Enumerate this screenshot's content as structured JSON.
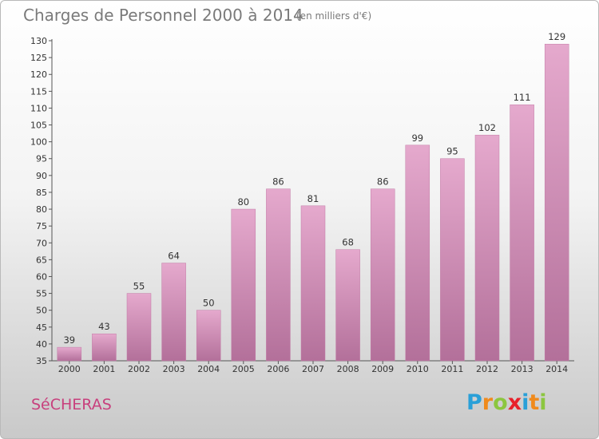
{
  "header": {
    "title": "Charges de Personnel 2000 à 2014",
    "subtitle": "(en milliers d'€)"
  },
  "footer": {
    "commune": "SéCHERAS",
    "logo_letters": [
      "P",
      "r",
      "o",
      "x",
      "i",
      "t",
      "i"
    ],
    "logo_colors": [
      "#2aa0d8",
      "#f08a1c",
      "#8cc63f",
      "#e8202a",
      "#2aa0d8",
      "#f08a1c",
      "#8cc63f"
    ]
  },
  "colors": {
    "bar_top": "#e5a9cd",
    "bar_bottom": "#b3709a",
    "bar_edge": "#c27aa6"
  },
  "chart_data": {
    "type": "bar",
    "title": "Charges de Personnel 2000 à 2014",
    "subtitle": "(en milliers d'€)",
    "categories": [
      "2000",
      "2001",
      "2002",
      "2003",
      "2004",
      "2005",
      "2006",
      "2007",
      "2008",
      "2009",
      "2010",
      "2011",
      "2012",
      "2013",
      "2014"
    ],
    "values": [
      39,
      43,
      55,
      64,
      50,
      80,
      86,
      81,
      68,
      86,
      99,
      95,
      102,
      111,
      129
    ],
    "ylim": [
      35,
      130
    ],
    "yticks": [
      35,
      40,
      45,
      50,
      55,
      60,
      65,
      70,
      75,
      80,
      85,
      90,
      95,
      100,
      105,
      110,
      115,
      120,
      125,
      130
    ],
    "grid": false,
    "xlabel": "",
    "ylabel": ""
  }
}
